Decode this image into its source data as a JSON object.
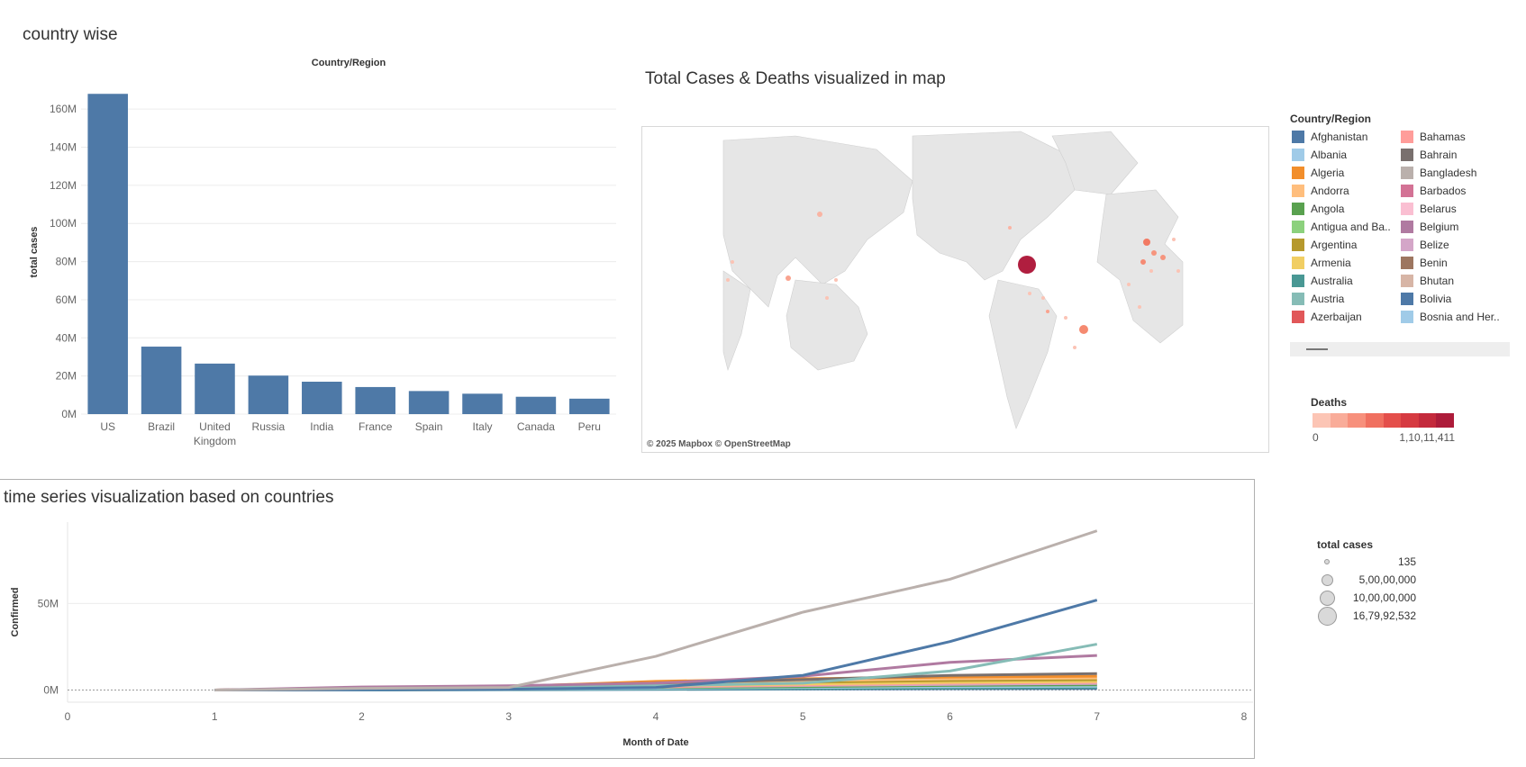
{
  "bar_sheet": {
    "title": "country wise",
    "col_header": "Country/Region"
  },
  "map_sheet": {
    "title": "Total Cases & Deaths visualized in map",
    "attribution": "© 2025 Mapbox © OpenStreetMap"
  },
  "ts_sheet": {
    "title": "time series visualization based on countries"
  },
  "legend_country": {
    "title": "Country/Region",
    "col1": [
      {
        "label": "Afghanistan",
        "color": "#4e79a7"
      },
      {
        "label": "Albania",
        "color": "#a0cbe8"
      },
      {
        "label": "Algeria",
        "color": "#f28e2b"
      },
      {
        "label": "Andorra",
        "color": "#ffbe7d"
      },
      {
        "label": "Angola",
        "color": "#59a14f"
      },
      {
        "label": "Antigua and Ba..",
        "color": "#8cd17d"
      },
      {
        "label": "Argentina",
        "color": "#b6992d"
      },
      {
        "label": "Armenia",
        "color": "#f1ce63"
      },
      {
        "label": "Australia",
        "color": "#499894"
      },
      {
        "label": "Austria",
        "color": "#86bcb6"
      },
      {
        "label": "Azerbaijan",
        "color": "#e15759"
      }
    ],
    "col2": [
      {
        "label": "Bahamas",
        "color": "#ff9d9a"
      },
      {
        "label": "Bahrain",
        "color": "#79706e"
      },
      {
        "label": "Bangladesh",
        "color": "#bab0ac"
      },
      {
        "label": "Barbados",
        "color": "#d37295"
      },
      {
        "label": "Belarus",
        "color": "#fabfd2"
      },
      {
        "label": "Belgium",
        "color": "#b07aa1"
      },
      {
        "label": "Belize",
        "color": "#d4a6c8"
      },
      {
        "label": "Benin",
        "color": "#9d7660"
      },
      {
        "label": "Bhutan",
        "color": "#d7b5a6"
      },
      {
        "label": "Bolivia",
        "color": "#4e79a7"
      },
      {
        "label": "Bosnia and Her..",
        "color": "#a0cbe8"
      }
    ]
  },
  "legend_deaths": {
    "title": "Deaths",
    "min_label": "0",
    "max_label": "1,10,11,411",
    "colors": [
      "#fcc5b5",
      "#f9ac99",
      "#f7907c",
      "#f07060",
      "#e44f4b",
      "#d63a41",
      "#c42a3c",
      "#ad1c3a"
    ]
  },
  "legend_size": {
    "title": "total cases",
    "items": [
      {
        "label": "135",
        "size": 4
      },
      {
        "label": "5,00,00,000",
        "size": 11
      },
      {
        "label": "10,00,00,000",
        "size": 15
      },
      {
        "label": "16,79,92,532",
        "size": 19
      }
    ]
  },
  "chart_data": [
    {
      "type": "bar",
      "title": "country wise",
      "xlabel": "Country/Region",
      "ylabel": "total cases",
      "categories": [
        "US",
        "Brazil",
        "United Kingdom",
        "Russia",
        "India",
        "France",
        "Spain",
        "Italy",
        "Canada",
        "Peru"
      ],
      "values": [
        167992532,
        35400000,
        26500000,
        20200000,
        17000000,
        14200000,
        12100000,
        10700000,
        9100000,
        8100000
      ],
      "ylim": [
        0,
        170000000
      ],
      "yticks": [
        0,
        20000000,
        40000000,
        60000000,
        80000000,
        100000000,
        120000000,
        140000000,
        160000000
      ],
      "ytick_labels": [
        "0M",
        "20M",
        "40M",
        "60M",
        "80M",
        "100M",
        "120M",
        "140M",
        "160M"
      ],
      "color": "#4e79a7",
      "grid": true
    },
    {
      "type": "line",
      "title": "time series visualization based on countries",
      "xlabel": "Month of Date",
      "ylabel": "Confirmed",
      "x": [
        1,
        2,
        3,
        4,
        5,
        6,
        7
      ],
      "xlim": [
        0,
        8
      ],
      "xticks": [
        0,
        1,
        2,
        3,
        4,
        5,
        6,
        7,
        8
      ],
      "ylim": [
        -7000000,
        97000000
      ],
      "yticks": [
        0,
        50000000
      ],
      "ytick_labels": [
        "0M",
        "50M"
      ],
      "series": [
        {
          "color": "#bab0ac",
          "values": [
            0,
            1000000,
            1500000,
            19500000,
            45000000,
            64000000,
            92000000
          ]
        },
        {
          "color": "#4e79a7",
          "values": [
            0,
            200000,
            500000,
            1500000,
            8500000,
            28000000,
            52000000
          ]
        },
        {
          "color": "#86bcb6",
          "values": [
            0,
            500000,
            1000000,
            2500000,
            4000000,
            11000000,
            26500000
          ]
        },
        {
          "color": "#b07aa1",
          "values": [
            0,
            1800000,
            2500000,
            4000000,
            8000000,
            16000000,
            20000000
          ]
        },
        {
          "color": "#79706e",
          "values": [
            0,
            1200000,
            2200000,
            4000000,
            6000000,
            8500000,
            9500000
          ]
        },
        {
          "color": "#f28e2b",
          "values": [
            0,
            1000000,
            2000000,
            5000000,
            6500000,
            7500000,
            8000000
          ]
        },
        {
          "color": "#ffbe7d",
          "values": [
            0,
            800000,
            1500000,
            4000000,
            5500000,
            6500000,
            7000000
          ]
        },
        {
          "color": "#b6992d",
          "values": [
            0,
            500000,
            1000000,
            3000000,
            4500000,
            5500000,
            6000000
          ]
        },
        {
          "color": "#f1ce63",
          "values": [
            0,
            300000,
            800000,
            2500000,
            3500000,
            4500000,
            5000000
          ]
        },
        {
          "color": "#ff9d9a",
          "values": [
            0,
            300000,
            700000,
            2000000,
            3000000,
            4000000,
            4500000
          ]
        },
        {
          "color": "#d4a6c8",
          "values": [
            0,
            400000,
            900000,
            1800000,
            2600000,
            3300000,
            3800000
          ]
        },
        {
          "color": "#59a14f",
          "values": [
            0,
            300000,
            700000,
            1500000,
            2000000,
            2700000,
            3000000
          ]
        },
        {
          "color": "#a0cbe8",
          "values": [
            0,
            200000,
            500000,
            1000000,
            1500000,
            2000000,
            2200000
          ]
        },
        {
          "color": "#499894",
          "values": [
            0,
            100000,
            300000,
            600000,
            900000,
            1200000,
            1500000
          ]
        },
        {
          "color": "#4e79a7",
          "values": [
            0,
            80000,
            200000,
            400000,
            600000,
            800000,
            900000
          ]
        }
      ],
      "grid": true
    }
  ]
}
